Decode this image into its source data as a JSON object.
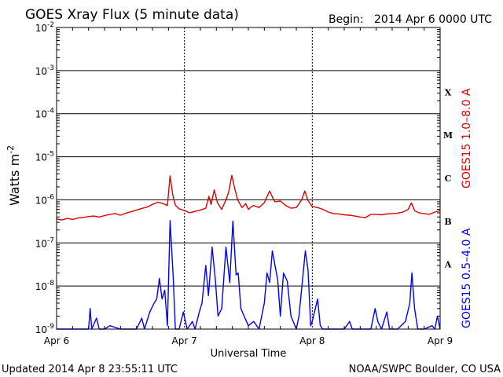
{
  "header": {
    "title": "GOES Xray Flux (5 minute data)",
    "begin_label": "Begin:",
    "begin_value": "2014 Apr 6 0000 UTC"
  },
  "footer": {
    "updated": "Updated 2014 Apr  8 23:55:11 UTC",
    "credit": "NOAA/SWPC Boulder, CO USA"
  },
  "colors": {
    "long": "#dd0000",
    "short": "#0000ff",
    "axis": "#000000"
  },
  "chart_data": {
    "type": "line",
    "title": "GOES Xray Flux (5 minute data)",
    "xlabel": "Universal Time",
    "ylabel": "Watts m",
    "ylabel_sup": "-2",
    "y_scale": "log",
    "ylim": [
      1e-09,
      0.01
    ],
    "xlim": [
      0,
      72
    ],
    "x_units": "hours since 2014 Apr 6 0000 UTC",
    "x_ticks": [
      {
        "x": 0,
        "label": "Apr 6"
      },
      {
        "x": 24,
        "label": "Apr 7"
      },
      {
        "x": 48,
        "label": "Apr 8"
      },
      {
        "x": 72,
        "label": "Apr 9"
      }
    ],
    "y_ticks": [
      {
        "exp": -9,
        "label": "10",
        "sup": "-9"
      },
      {
        "exp": -8,
        "label": "10",
        "sup": "-8"
      },
      {
        "exp": -7,
        "label": "10",
        "sup": "-7"
      },
      {
        "exp": -6,
        "label": "10",
        "sup": "-6"
      },
      {
        "exp": -5,
        "label": "10",
        "sup": "-5"
      },
      {
        "exp": -4,
        "label": "10",
        "sup": "-4"
      },
      {
        "exp": -3,
        "label": "10",
        "sup": "-3"
      },
      {
        "exp": -2,
        "label": "10",
        "sup": "-2"
      }
    ],
    "flare_classes": [
      {
        "label": "A",
        "exp": -7.5
      },
      {
        "label": "B",
        "exp": -6.5
      },
      {
        "label": "C",
        "exp": -5.5
      },
      {
        "label": "M",
        "exp": -4.5
      },
      {
        "label": "X",
        "exp": -3.5
      }
    ],
    "grid": true,
    "series": [
      {
        "name": "GOES15 1.0–8.0 A",
        "color": "#dd0000",
        "points": [
          [
            0,
            3.6e-07
          ],
          [
            1,
            3.4e-07
          ],
          [
            2,
            3.7e-07
          ],
          [
            3,
            3.5e-07
          ],
          [
            4,
            3.8e-07
          ],
          [
            5,
            3.9e-07
          ],
          [
            6,
            4.1e-07
          ],
          [
            7,
            4.2e-07
          ],
          [
            8,
            4e-07
          ],
          [
            9,
            4.3e-07
          ],
          [
            10,
            4.6e-07
          ],
          [
            11,
            4.8e-07
          ],
          [
            12,
            4.4e-07
          ],
          [
            13,
            4.9e-07
          ],
          [
            14,
            5.3e-07
          ],
          [
            15,
            5.8e-07
          ],
          [
            16,
            6.3e-07
          ],
          [
            17,
            6.8e-07
          ],
          [
            18,
            7.8e-07
          ],
          [
            19,
            8.8e-07
          ],
          [
            20,
            8.2e-07
          ],
          [
            20.8,
            7.4e-07
          ],
          [
            21.3,
            3.6e-06
          ],
          [
            21.8,
            1.3e-06
          ],
          [
            22.3,
            7.5e-07
          ],
          [
            23,
            6.2e-07
          ],
          [
            24,
            5.6e-07
          ],
          [
            25,
            5e-07
          ],
          [
            26,
            5.4e-07
          ],
          [
            27,
            5.8e-07
          ],
          [
            28,
            6.4e-07
          ],
          [
            28.6,
            1.2e-06
          ],
          [
            29,
            7.8e-07
          ],
          [
            29.6,
            1.7e-06
          ],
          [
            30.2,
            8.5e-07
          ],
          [
            31,
            6e-07
          ],
          [
            31.8,
            1e-06
          ],
          [
            32.3,
            1.5e-06
          ],
          [
            32.9,
            3.7e-06
          ],
          [
            33.4,
            1.9e-06
          ],
          [
            34,
            1e-06
          ],
          [
            34.8,
            6.6e-07
          ],
          [
            35.5,
            8.2e-07
          ],
          [
            36,
            6e-07
          ],
          [
            36.5,
            6.8e-07
          ],
          [
            37,
            7.4e-07
          ],
          [
            38,
            6.6e-07
          ],
          [
            39,
            8.6e-07
          ],
          [
            40,
            1.6e-06
          ],
          [
            40.6,
            1.1e-06
          ],
          [
            41,
            9e-07
          ],
          [
            42,
            9.4e-07
          ],
          [
            43,
            7.4e-07
          ],
          [
            44,
            6.4e-07
          ],
          [
            45,
            6.6e-07
          ],
          [
            46,
            1e-06
          ],
          [
            46.6,
            1.6e-06
          ],
          [
            47.2,
            9.6e-07
          ],
          [
            48,
            7e-07
          ],
          [
            49,
            6.6e-07
          ],
          [
            50,
            6e-07
          ],
          [
            51,
            5.2e-07
          ],
          [
            52,
            4.8e-07
          ],
          [
            53,
            4.7e-07
          ],
          [
            54,
            4.5e-07
          ],
          [
            55,
            4.4e-07
          ],
          [
            56,
            4.2e-07
          ],
          [
            57,
            4e-07
          ],
          [
            58,
            3.9e-07
          ],
          [
            59,
            4.6e-07
          ],
          [
            60,
            4.6e-07
          ],
          [
            61,
            4.5e-07
          ],
          [
            62,
            4.7e-07
          ],
          [
            63,
            4.8e-07
          ],
          [
            64,
            4.9e-07
          ],
          [
            65,
            5.2e-07
          ],
          [
            66,
            6e-07
          ],
          [
            66.6,
            8.5e-07
          ],
          [
            67.2,
            5.6e-07
          ],
          [
            68,
            5e-07
          ],
          [
            69,
            4.8e-07
          ],
          [
            70,
            4.6e-07
          ],
          [
            71,
            5.2e-07
          ],
          [
            72,
            5.6e-07
          ]
        ]
      },
      {
        "name": "GOES15 0.5–4.0 A",
        "color": "#0000ff",
        "points": [
          [
            0,
            1e-09
          ],
          [
            6,
            1e-09
          ],
          [
            6.3,
            3e-09
          ],
          [
            6.6,
            1e-09
          ],
          [
            7.5,
            1.8e-09
          ],
          [
            8,
            1e-09
          ],
          [
            9,
            1e-09
          ],
          [
            10,
            1.2e-09
          ],
          [
            12,
            1e-09
          ],
          [
            15,
            1e-09
          ],
          [
            16,
            1.8e-09
          ],
          [
            16.5,
            1e-09
          ],
          [
            17.5,
            2.5e-09
          ],
          [
            18.3,
            4e-09
          ],
          [
            18.8,
            5e-09
          ],
          [
            19.3,
            1.5e-08
          ],
          [
            19.8,
            5e-09
          ],
          [
            20.3,
            8e-09
          ],
          [
            20.8,
            1.2e-09
          ],
          [
            21.3,
            3.3e-07
          ],
          [
            21.9,
            1.6e-08
          ],
          [
            22.3,
            1e-09
          ],
          [
            23,
            1e-09
          ],
          [
            23.8,
            2.5e-09
          ],
          [
            24.5,
            1e-09
          ],
          [
            25.5,
            1.5e-09
          ],
          [
            26,
            1e-09
          ],
          [
            26.8,
            2.5e-09
          ],
          [
            27.3,
            4e-09
          ],
          [
            28,
            3e-08
          ],
          [
            28.5,
            6e-09
          ],
          [
            29.2,
            8e-08
          ],
          [
            29.8,
            1.4e-08
          ],
          [
            30.3,
            2e-09
          ],
          [
            31,
            3e-09
          ],
          [
            31.8,
            8e-08
          ],
          [
            32.5,
            1.2e-08
          ],
          [
            33.1,
            3.2e-07
          ],
          [
            33.7,
            1.8e-08
          ],
          [
            34.1,
            2e-08
          ],
          [
            34.6,
            3e-09
          ],
          [
            35.2,
            2e-09
          ],
          [
            36,
            1.2e-09
          ],
          [
            37,
            1.5e-09
          ],
          [
            38,
            1e-09
          ],
          [
            39,
            4e-09
          ],
          [
            39.5,
            2e-08
          ],
          [
            40,
            1.2e-08
          ],
          [
            40.5,
            6.5e-08
          ],
          [
            41,
            3e-08
          ],
          [
            41.5,
            1.4e-08
          ],
          [
            42,
            2e-09
          ],
          [
            42.6,
            2e-08
          ],
          [
            43.3,
            1.3e-08
          ],
          [
            44,
            2e-09
          ],
          [
            45,
            1e-09
          ],
          [
            45.5,
            2e-09
          ],
          [
            46.2,
            1.5e-08
          ],
          [
            46.7,
            6.5e-08
          ],
          [
            47.2,
            2.4e-08
          ],
          [
            47.7,
            1.2e-09
          ],
          [
            48,
            1.5e-09
          ],
          [
            49,
            5e-09
          ],
          [
            49.5,
            1.2e-09
          ],
          [
            50,
            1e-09
          ],
          [
            52,
            1e-09
          ],
          [
            54,
            1e-09
          ],
          [
            55,
            1.5e-09
          ],
          [
            55.5,
            1e-09
          ],
          [
            57,
            1e-09
          ],
          [
            59,
            1e-09
          ],
          [
            59.8,
            3e-09
          ],
          [
            60.3,
            1.5e-09
          ],
          [
            61,
            1e-09
          ],
          [
            62,
            2.5e-09
          ],
          [
            62.5,
            1e-09
          ],
          [
            64,
            1e-09
          ],
          [
            65.5,
            1.5e-09
          ],
          [
            66.3,
            4e-09
          ],
          [
            66.7,
            2e-08
          ],
          [
            67.2,
            3e-09
          ],
          [
            67.8,
            1e-09
          ],
          [
            69,
            1e-09
          ],
          [
            70.5,
            1.2e-09
          ],
          [
            71,
            1e-09
          ],
          [
            71.5,
            2e-09
          ],
          [
            72,
            1e-09
          ]
        ]
      }
    ],
    "legend": [
      {
        "text": "GOES15 1.0–8.0 A",
        "color": "#dd0000"
      },
      {
        "text": "GOES15 0.5–4.0 A",
        "color": "#0000ff"
      }
    ],
    "legend_placement": "right, vertical"
  }
}
